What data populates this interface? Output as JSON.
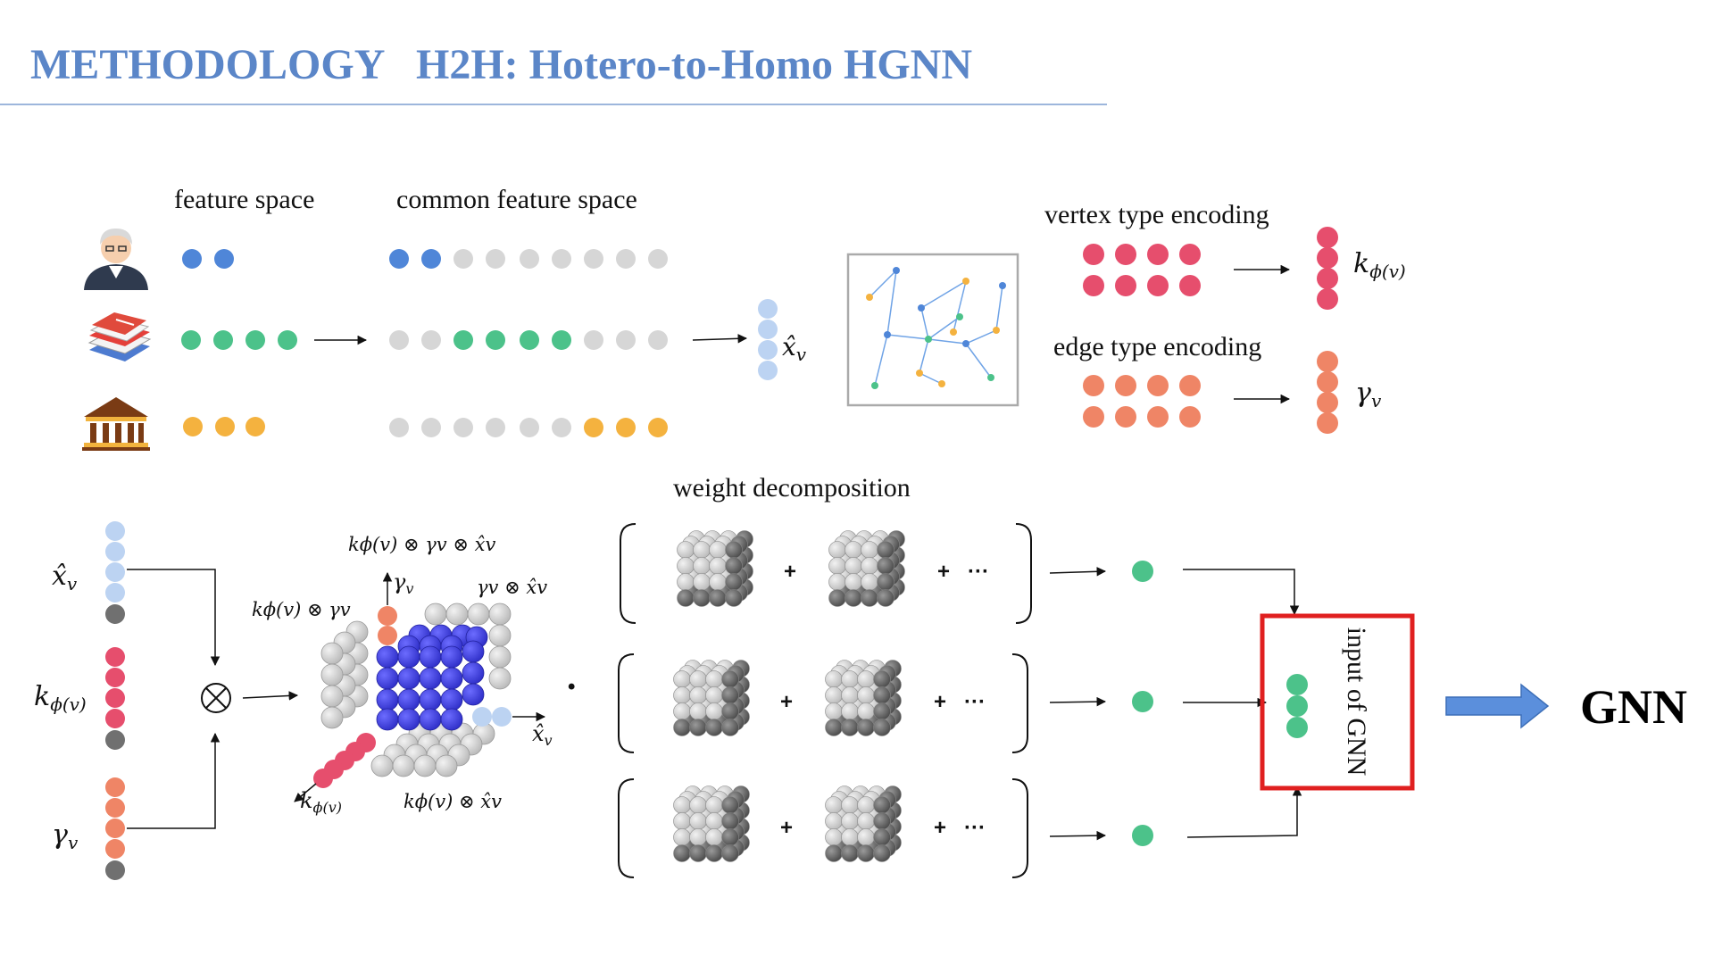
{
  "header": {
    "section": "METHODOLOGY",
    "title": "H2H: Hotero-to-Homo HGNN"
  },
  "labels": {
    "feature_space": "feature space",
    "common_feature_space": "common feature space",
    "vertex_type_encoding": "vertex type encoding",
    "edge_type_encoding": "edge type encoding",
    "weight_decomposition": "weight decomposition",
    "input_of_gnn": "input of GNN",
    "gnn": "GNN"
  },
  "math": {
    "x_hat": "x̂",
    "x_hat_sub": "v",
    "k_phi_v": "k",
    "k_phi_v_sub": "ϕ(v)",
    "gamma_v": "γ",
    "gamma_v_sub": "v",
    "tensor_product_symbol": "⊗",
    "triple_product": "kϕ(v) ⊗ γv ⊗ x̂v",
    "k_gamma": "kϕ(v) ⊗ γv",
    "gamma_x": "γv ⊗ x̂v",
    "k_x": "kϕ(v) ⊗ x̂v",
    "dot": "•",
    "plus": "+",
    "ellipsis": "···"
  },
  "icons": [
    "person-icon",
    "book-icon",
    "institution-icon",
    "graph-icon"
  ],
  "colors": {
    "title": "#5b86c8",
    "blue_dot": "#4f86d8",
    "light_blue_dot": "#bcd3f2",
    "green_dot": "#4cc28a",
    "orange_dot": "#f4b23f",
    "gray_dot": "#d6d6d6",
    "dark_gray_dot": "#707070",
    "red_dot": "#e64e6d",
    "salmon_dot": "#ef8566",
    "cube_blue": "#4545e6",
    "highlight_box": "#e02020",
    "arrow_fill": "#5b8fdc"
  }
}
